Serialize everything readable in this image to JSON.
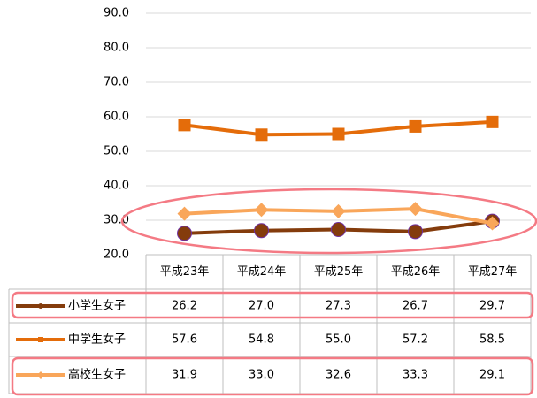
{
  "chart_data": {
    "type": "line",
    "categories": [
      "平成23年",
      "平成24年",
      "平成25年",
      "平成26年",
      "平成27年"
    ],
    "series": [
      {
        "name": "小学生女子",
        "color": "#843c0c",
        "marker": "circle",
        "values": [
          26.2,
          27.0,
          27.3,
          26.7,
          29.7
        ],
        "value_labels": [
          "26.2",
          "27.0",
          "27.3",
          "26.7",
          "29.7"
        ]
      },
      {
        "name": "中学生女子",
        "color": "#e46c0a",
        "marker": "square",
        "values": [
          57.6,
          54.8,
          55.0,
          57.2,
          58.5
        ],
        "value_labels": [
          "57.6",
          "54.8",
          "55.0",
          "57.2",
          "58.5"
        ]
      },
      {
        "name": "高校生女子",
        "color": "#f9a65a",
        "marker": "diamond",
        "values": [
          31.9,
          33.0,
          32.6,
          33.3,
          29.1
        ],
        "value_labels": [
          "31.9",
          "33.0",
          "32.6",
          "33.3",
          "29.1"
        ]
      }
    ],
    "ylim": [
      20,
      90
    ],
    "yticks": [
      {
        "value": 20,
        "label": "20.0"
      },
      {
        "value": 30,
        "label": "30.0"
      },
      {
        "value": 40,
        "label": "40.0"
      },
      {
        "value": 50,
        "label": "50.0"
      },
      {
        "value": 60,
        "label": "60.0"
      },
      {
        "value": 70,
        "label": "70.0"
      },
      {
        "value": 80,
        "label": "80.0"
      },
      {
        "value": 90,
        "label": "90.0"
      }
    ],
    "grid": true
  }
}
